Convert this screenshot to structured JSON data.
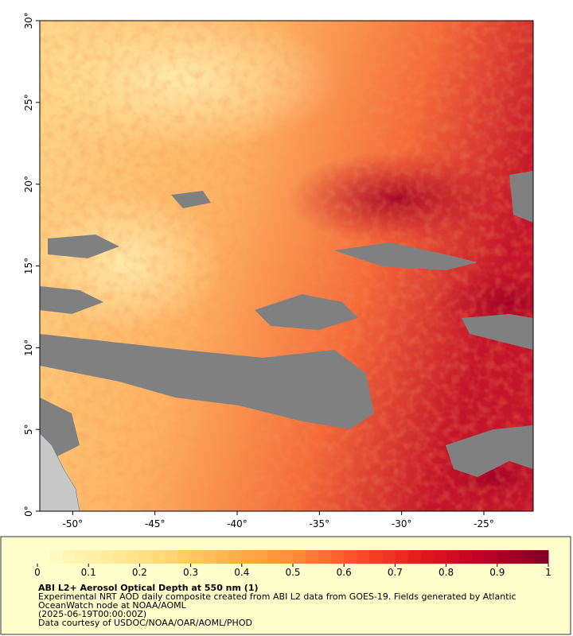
{
  "map": {
    "xlim": [
      -52,
      -22
    ],
    "ylim": [
      0,
      30
    ],
    "xticks": [
      {
        "value": -50,
        "label": "-50°"
      },
      {
        "value": -45,
        "label": "-45°"
      },
      {
        "value": -40,
        "label": "-40°"
      },
      {
        "value": -35,
        "label": "-35°"
      },
      {
        "value": -30,
        "label": "-30°"
      },
      {
        "value": -25,
        "label": "-25°"
      }
    ],
    "yticks": [
      {
        "value": 0,
        "label": "0°"
      },
      {
        "value": 5,
        "label": "5°"
      },
      {
        "value": 10,
        "label": "10°"
      },
      {
        "value": 15,
        "label": "15°"
      },
      {
        "value": 20,
        "label": "20°"
      },
      {
        "value": 25,
        "label": "25°"
      },
      {
        "value": 30,
        "label": "30°"
      }
    ]
  },
  "colorbar": {
    "range": [
      0,
      1
    ],
    "ticks": [
      0,
      0.1,
      0.2,
      0.3,
      0.4,
      0.5,
      0.6,
      0.7,
      0.8,
      0.9,
      1
    ],
    "colors": [
      "#ffffcc",
      "#ffeda0",
      "#fed976",
      "#feb24c",
      "#fd8d3c",
      "#fc4e2a",
      "#e31a1c",
      "#bd0026",
      "#800026"
    ]
  },
  "legend": {
    "title": "ABI L2+ Aerosol Optical Depth at 550 nm (1)",
    "lines": [
      "Experimental NRT AOD daily composite created from ABI L2 data from GOES-19. Fields generated by Atlantic",
      "OceanWatch node at NOAA/AOML",
      "(2025-06-19T00:00:00Z)",
      "Data courtesy of USDOC/NOAA/OAR/AOML/PHOD"
    ]
  }
}
